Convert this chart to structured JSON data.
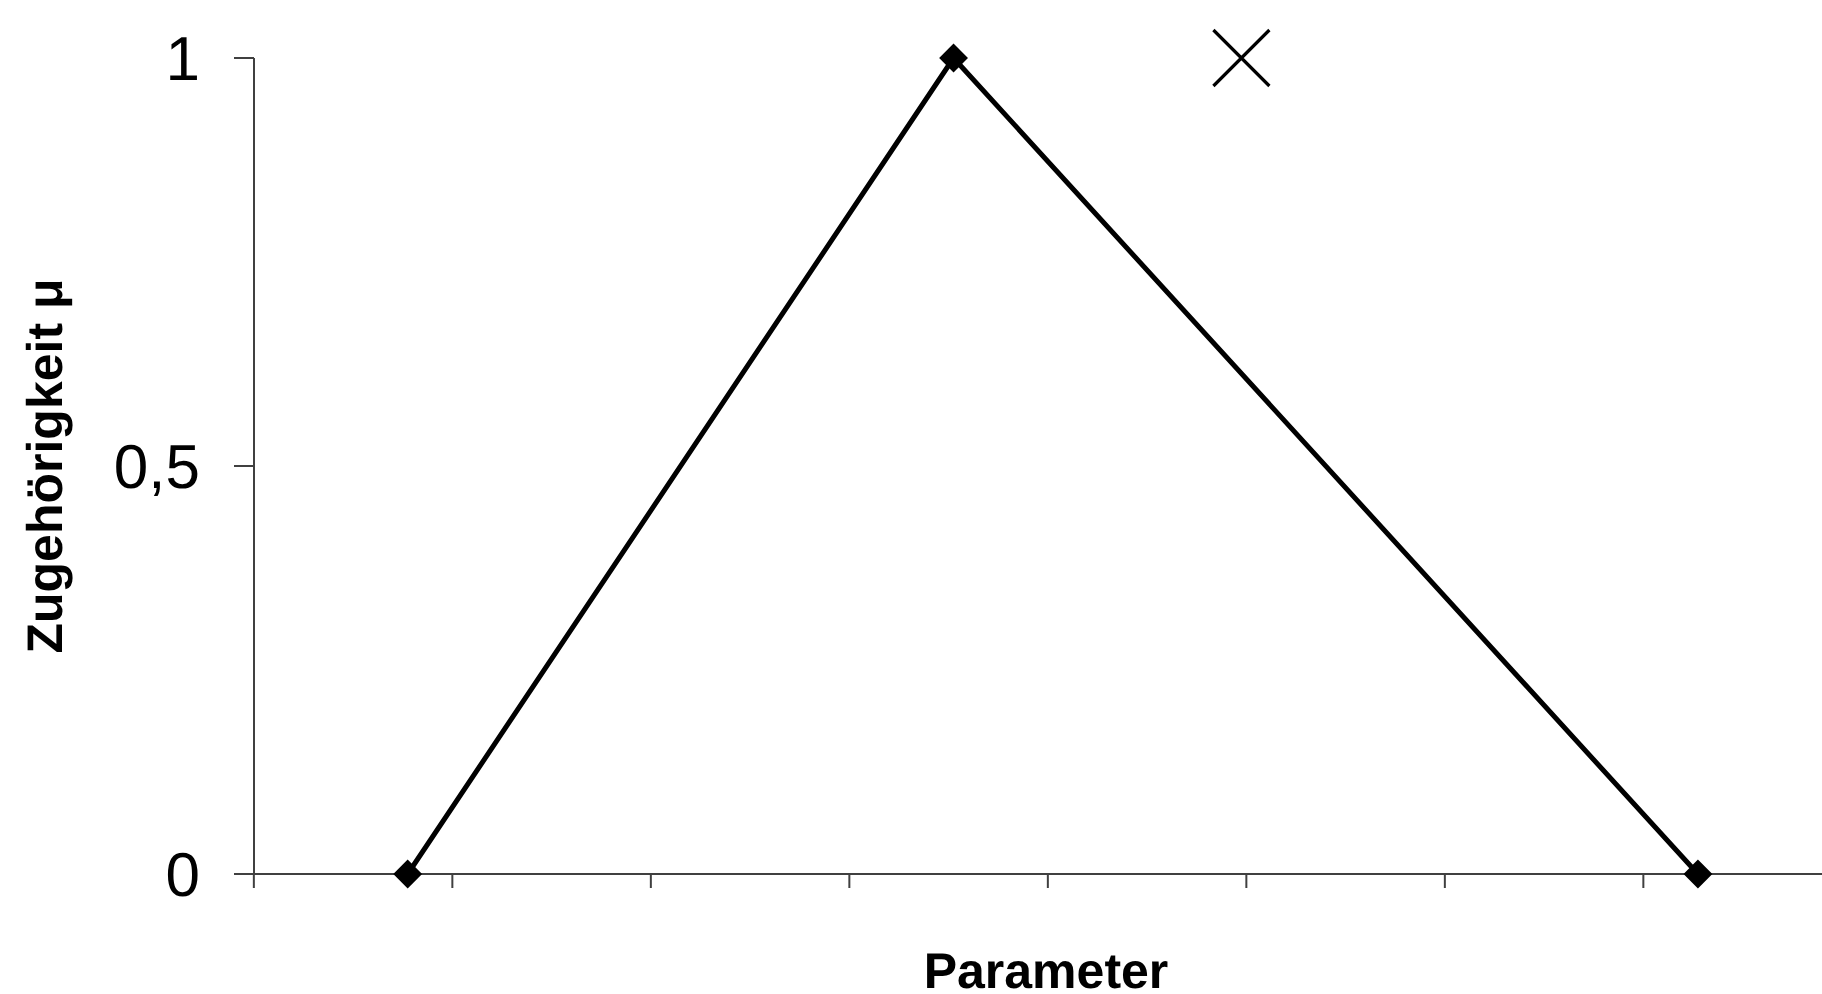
{
  "chart_data": {
    "type": "line",
    "xlabel": "Parameter",
    "ylabel": "Zugehörigkeit μ",
    "categories": [
      null,
      null,
      null,
      null,
      null,
      null,
      null,
      null,
      null,
      null,
      null,
      null,
      null,
      null,
      null,
      null,
      null,
      null,
      null,
      null,
      null,
      null,
      null,
      null,
      null,
      null,
      null,
      null,
      null,
      null,
      null,
      null,
      null,
      null,
      null,
      null,
      null,
      null,
      null,
      null,
      null,
      null,
      null,
      null,
      null,
      null,
      null,
      null,
      null,
      null,
      null,
      null,
      null,
      null,
      null,
      null,
      null,
      null,
      null,
      null,
      null,
      null,
      null,
      null,
      null,
      null,
      null,
      null,
      null,
      null,
      null,
      null,
      null,
      null,
      null,
      null,
      null,
      null,
      null,
      null,
      null,
      null,
      null,
      null,
      null,
      null,
      null,
      null,
      null,
      null,
      null,
      null,
      null,
      null,
      null,
      null,
      null,
      null,
      null,
      null,
      null,
      null,
      null,
      null,
      null,
      null,
      null,
      null,
      null,
      null,
      null,
      null,
      null,
      null,
      null,
      null,
      null,
      null,
      null,
      null,
      null,
      null,
      null,
      null,
      null,
      null,
      null,
      null,
      null,
      null,
      null,
      null,
      null,
      null,
      null,
      null,
      null,
      null,
      null,
      null,
      null,
      null,
      null,
      null,
      null,
      null,
      null,
      null,
      null,
      null,
      null,
      null,
      null,
      null,
      null,
      null,
      null,
      null,
      null,
      null
    ],
    "ylim": [
      0,
      1
    ],
    "yticks": [
      0,
      {
        "value": 0.5,
        "label": "0,5"
      },
      1
    ],
    "tick_labels": "y",
    "series": [
      {
        "color": "#000000",
        "marker": "diamond",
        "line_style": "solid",
        "values": [
          null,
          null,
          null,
          null,
          null,
          null,
          null,
          null,
          null,
          null,
          null,
          null,
          null,
          null,
          null,
          null,
          null,
          0,
          null,
          null,
          null,
          null,
          null,
          null,
          null,
          null,
          null,
          null,
          null,
          null,
          null,
          null,
          null,
          null,
          null,
          null,
          null,
          null,
          null,
          null,
          null,
          null,
          null,
          null,
          null,
          null,
          null,
          null,
          null,
          null,
          null,
          null,
          null,
          null,
          null,
          null,
          null,
          null,
          null,
          null,
          null,
          null,
          null,
          null,
          null,
          null,
          null,
          null,
          null,
          null,
          null,
          null,
          1,
          null,
          null,
          null,
          null,
          null,
          null,
          null,
          null,
          null,
          null,
          null,
          null,
          null,
          null,
          null,
          null,
          null,
          null,
          null,
          null,
          null,
          null,
          null,
          null,
          null,
          null,
          null,
          null,
          null,
          null,
          null,
          null,
          null,
          null,
          null,
          null,
          null,
          null,
          null,
          null,
          null,
          null,
          null,
          null,
          null,
          null,
          null,
          null,
          null,
          null,
          null,
          null,
          null,
          null,
          null,
          null,
          null,
          null,
          null,
          null,
          null,
          null,
          null,
          null,
          null,
          null,
          null,
          null,
          null,
          null,
          null,
          null,
          null,
          null,
          0,
          null,
          null,
          null,
          null,
          null,
          null,
          null,
          null,
          null,
          null,
          null,
          null
        ]
      },
      {
        "type": "scatter",
        "color": "#000000",
        "marker": "cross",
        "values": [
          null,
          null,
          null,
          null,
          null,
          null,
          null,
          null,
          null,
          null,
          null,
          null,
          null,
          null,
          null,
          null,
          null,
          null,
          null,
          null,
          null,
          null,
          null,
          null,
          null,
          null,
          null,
          null,
          null,
          null,
          null,
          null,
          null,
          null,
          null,
          null,
          null,
          null,
          null,
          null,
          null,
          null,
          null,
          null,
          null,
          null,
          null,
          null,
          null,
          null,
          null,
          null,
          null,
          null,
          null,
          null,
          null,
          null,
          null,
          null,
          null,
          null,
          null,
          null,
          null,
          null,
          null,
          null,
          null,
          null,
          null,
          null,
          null,
          null,
          null,
          null,
          null,
          null,
          null,
          null,
          null,
          null,
          null,
          null,
          null,
          null,
          null,
          null,
          null,
          null,
          null,
          null,
          null,
          null,
          null,
          null,
          null,
          null,
          null,
          null,
          null,
          1,
          null,
          null,
          null,
          null,
          null,
          null,
          null,
          null,
          null,
          null,
          null,
          null,
          null,
          null,
          null,
          null,
          null,
          null,
          null,
          null,
          null,
          null,
          null,
          null,
          null,
          null,
          null,
          null,
          null,
          null,
          null,
          null,
          null,
          null,
          null,
          null,
          null,
          null,
          null,
          null,
          null,
          null,
          null,
          null,
          null,
          null,
          null,
          null,
          null,
          null,
          null,
          null,
          null,
          null,
          null,
          null,
          null,
          null
        ]
      }
    ]
  }
}
